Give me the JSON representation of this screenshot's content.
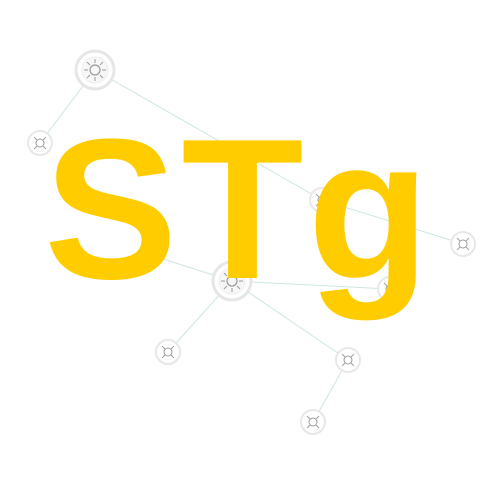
{
  "logo": {
    "text": "STg",
    "color": "#ffcc00"
  },
  "network": {
    "node_icon": "star-node-icon",
    "node_count": 10,
    "edge_color": "#cfe8e4",
    "node_ring_color": "#e3e3e3"
  }
}
